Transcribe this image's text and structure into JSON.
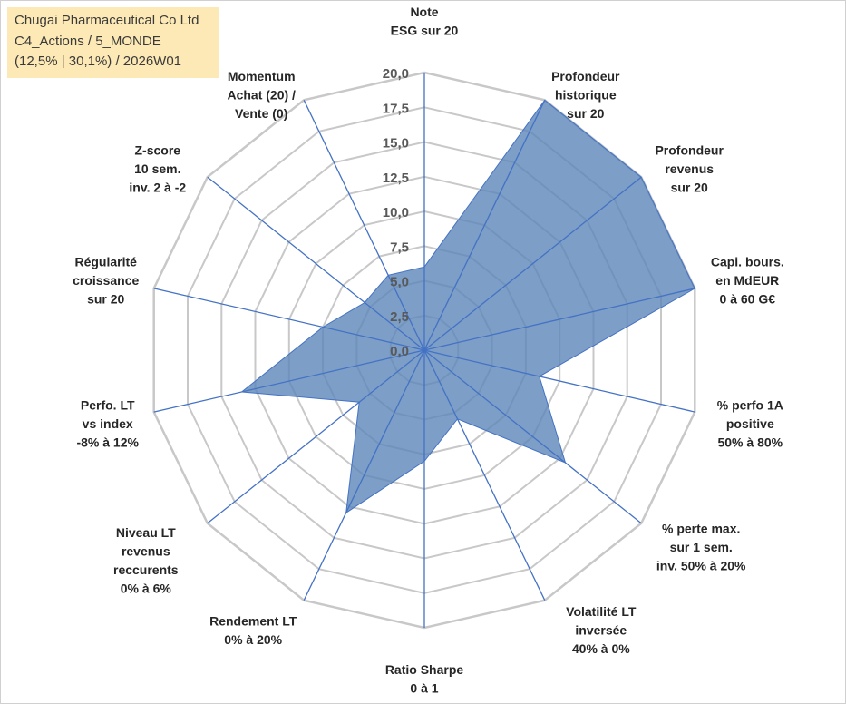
{
  "info": {
    "company": "Chugai Pharmaceutical Co Ltd",
    "category": "C4_Actions / 5_MONDE",
    "stats": "(12,5% | 30,1%) / 2026W01"
  },
  "chart_data": {
    "type": "radar",
    "title": "",
    "rlim": [
      0,
      20
    ],
    "ticks": [
      "0,0",
      "2,5",
      "5,0",
      "7,5",
      "10,0",
      "12,5",
      "15,0",
      "17,5",
      "20,0"
    ],
    "axes": [
      [
        "Note",
        "ESG sur 20"
      ],
      [
        "Profondeur",
        "historique",
        "sur 20"
      ],
      [
        "Profondeur",
        "revenus",
        "sur 20"
      ],
      [
        "Capi. bours.",
        "en MdEUR",
        "0 à 60 G€"
      ],
      [
        "% perfo 1A",
        "positive",
        "50% à 80%"
      ],
      [
        "% perte max.",
        "sur 1 sem.",
        "inv. 50% à 20%"
      ],
      [
        "Volatilité LT",
        "inversée",
        "40% à 0%"
      ],
      [
        "Ratio Sharpe",
        "0 à 1"
      ],
      [
        "Rendement LT",
        "0% à 20%"
      ],
      [
        "Niveau LT",
        "revenus",
        "reccurents",
        "0% à 6%"
      ],
      [
        "Perfo. LT",
        "vs index",
        "-8% à 12%"
      ],
      [
        "Régularité",
        "croissance",
        "sur 20"
      ],
      [
        "Z-score",
        "10 sem.",
        "inv. 2 à -2"
      ],
      [
        "Momentum",
        "Achat (20) /",
        "Vente (0)"
      ]
    ],
    "series": [
      {
        "name": "Chugai Pharmaceutical Co Ltd",
        "values": [
          6.0,
          20.0,
          20.0,
          20.0,
          8.5,
          13.0,
          5.5,
          8.0,
          13.0,
          6.0,
          13.5,
          7.5,
          5.5,
          6.0
        ]
      }
    ],
    "colors": {
      "fill": "#5b86b9",
      "stroke": "#4472c4",
      "grid": "#c8c8c8",
      "spoke": "#4472c4"
    }
  }
}
